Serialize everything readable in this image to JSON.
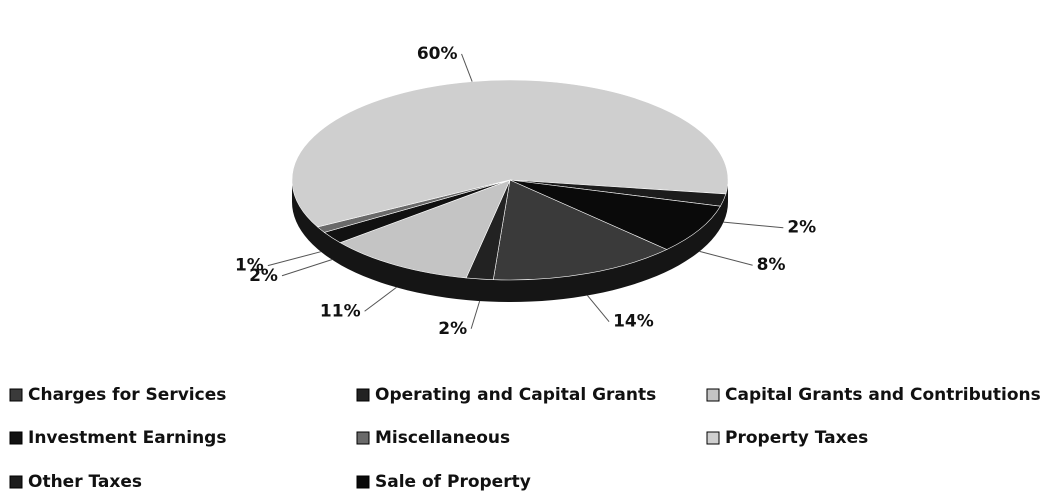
{
  "chart_data": {
    "type": "pie",
    "categories": [
      "Charges for Services",
      "Operating and Capital Grants",
      "Capital Grants and Contributions",
      "Investment Earnings",
      "Miscellaneous",
      "Property Taxes",
      "Other Taxes",
      "Sale of Property"
    ],
    "values": [
      14,
      2,
      11,
      2,
      1,
      60,
      2,
      8
    ],
    "value_labels": [
      "14%",
      "2%",
      "11%",
      "2%",
      "1%",
      "60%",
      "2%",
      "8%"
    ],
    "colors": [
      "#3a3a3a",
      "#222222",
      "#c4c4c4",
      "#111111",
      "#6a6a6a",
      "#cfcfcf",
      "#1c1c1c",
      "#0a0a0a"
    ],
    "legend": "bottom"
  }
}
